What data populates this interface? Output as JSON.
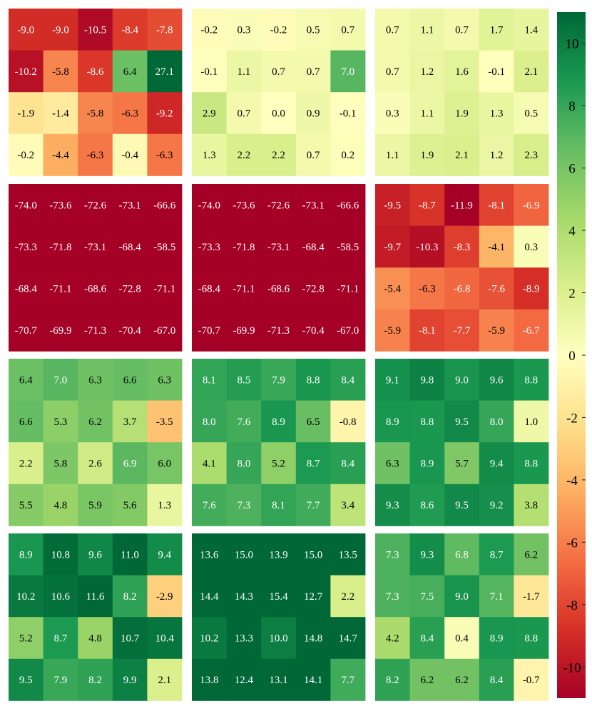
{
  "chart_data": {
    "type": "heatmap",
    "layout": {
      "rows": 4,
      "cols": 3
    },
    "color_scale": {
      "min": -11,
      "max": 11,
      "colormap": "RdYlGn",
      "ticks": [
        "10",
        "8",
        "6",
        "4",
        "2",
        "0",
        "-2",
        "-4",
        "-6",
        "-8",
        "-10"
      ]
    },
    "panels": [
      [
        [
          [
            -9.0,
            -9.0,
            -10.5,
            -8.4,
            -7.8
          ],
          [
            -10.2,
            -5.8,
            -8.6,
            6.4,
            27.1
          ],
          [
            -1.9,
            -1.4,
            -5.8,
            -6.3,
            -9.2
          ],
          [
            -0.2,
            -4.4,
            -6.3,
            -0.4,
            -6.3
          ]
        ],
        [
          [
            -0.2,
            0.3,
            -0.2,
            0.5,
            0.7
          ],
          [
            -0.1,
            1.1,
            0.7,
            0.7,
            7.0
          ],
          [
            2.9,
            0.7,
            0.0,
            0.9,
            -0.1
          ],
          [
            1.3,
            2.2,
            2.2,
            0.7,
            0.2
          ]
        ],
        [
          [
            0.7,
            1.1,
            0.7,
            1.7,
            1.4
          ],
          [
            0.7,
            1.2,
            1.6,
            -0.1,
            2.1
          ],
          [
            0.3,
            1.1,
            1.9,
            1.3,
            0.5
          ],
          [
            1.1,
            1.9,
            2.1,
            1.2,
            2.3
          ]
        ]
      ],
      [
        [
          [
            -74.0,
            -73.6,
            -72.6,
            -73.1,
            -66.6
          ],
          [
            -73.3,
            -71.8,
            -73.1,
            -68.4,
            -58.5
          ],
          [
            -68.4,
            -71.1,
            -68.6,
            -72.8,
            -71.1
          ],
          [
            -70.7,
            -69.9,
            -71.3,
            -70.4,
            -67.0
          ]
        ],
        [
          [
            -74.0,
            -73.6,
            -72.6,
            -73.1,
            -66.6
          ],
          [
            -73.3,
            -71.8,
            -73.1,
            -68.4,
            -58.5
          ],
          [
            -68.4,
            -71.1,
            -68.6,
            -72.8,
            -71.1
          ],
          [
            -70.7,
            -69.9,
            -71.3,
            -70.4,
            -67.0
          ]
        ],
        [
          [
            -9.5,
            -8.7,
            -11.9,
            -8.1,
            -6.9
          ],
          [
            -9.7,
            -10.3,
            -8.3,
            -4.1,
            0.3
          ],
          [
            -5.4,
            -6.3,
            -6.8,
            -7.6,
            -8.9
          ],
          [
            -5.9,
            -8.1,
            -7.7,
            -5.9,
            -6.7
          ]
        ]
      ],
      [
        [
          [
            6.4,
            7.0,
            6.3,
            6.6,
            6.3
          ],
          [
            6.6,
            5.3,
            6.2,
            3.7,
            -3.5
          ],
          [
            2.2,
            5.8,
            2.6,
            6.9,
            6.0
          ],
          [
            5.5,
            4.8,
            5.9,
            5.6,
            1.3
          ]
        ],
        [
          [
            8.1,
            8.5,
            7.9,
            8.8,
            8.4
          ],
          [
            8.0,
            7.6,
            8.9,
            6.5,
            -0.8
          ],
          [
            4.1,
            8.0,
            5.2,
            8.7,
            8.4
          ],
          [
            7.6,
            7.3,
            8.1,
            7.7,
            3.4
          ]
        ],
        [
          [
            9.1,
            9.8,
            9.0,
            9.6,
            8.8
          ],
          [
            8.9,
            8.8,
            9.5,
            8.0,
            1.0
          ],
          [
            6.3,
            8.9,
            5.7,
            9.4,
            8.8
          ],
          [
            9.3,
            8.6,
            9.5,
            9.2,
            3.8
          ]
        ]
      ],
      [
        [
          [
            8.9,
            10.8,
            9.6,
            11.0,
            9.4
          ],
          [
            10.2,
            10.6,
            11.6,
            8.2,
            -2.9
          ],
          [
            5.2,
            8.7,
            4.8,
            10.7,
            10.4
          ],
          [
            9.5,
            7.9,
            8.2,
            9.9,
            2.1
          ]
        ],
        [
          [
            13.6,
            15.0,
            13.9,
            15.0,
            13.5
          ],
          [
            14.4,
            14.3,
            15.4,
            12.7,
            2.2
          ],
          [
            10.2,
            13.3,
            10.0,
            14.8,
            14.7
          ],
          [
            13.8,
            12.4,
            13.1,
            14.1,
            7.7
          ]
        ],
        [
          [
            7.3,
            9.3,
            6.8,
            8.7,
            6.2
          ],
          [
            7.3,
            7.5,
            9.0,
            7.1,
            -1.7
          ],
          [
            4.2,
            8.4,
            0.4,
            8.9,
            8.8
          ],
          [
            8.2,
            6.2,
            6.2,
            8.4,
            -0.7
          ]
        ]
      ]
    ]
  }
}
